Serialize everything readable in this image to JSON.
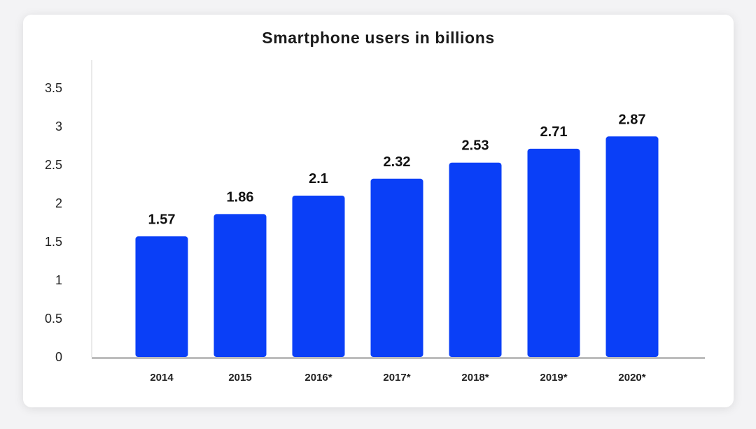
{
  "chart_data": {
    "type": "bar",
    "title": "Smartphone users in billions",
    "xlabel": "",
    "ylabel": "",
    "categories": [
      "2014",
      "2015",
      "2016*",
      "2017*",
      "2018*",
      "2019*",
      "2020*"
    ],
    "values": [
      1.57,
      1.86,
      2.1,
      2.32,
      2.53,
      2.71,
      2.87
    ],
    "data_labels": [
      "1.57",
      "1.86",
      "2.1",
      "2.32",
      "2.53",
      "2.71",
      "2.87"
    ],
    "yticks": [
      "0",
      "0.5",
      "1",
      "1.5",
      "2",
      "2.5",
      "3",
      "3.5"
    ],
    "ylim": [
      0,
      3.5
    ],
    "grid": false,
    "legend": "none",
    "bar_color": "#0a3ff7"
  }
}
